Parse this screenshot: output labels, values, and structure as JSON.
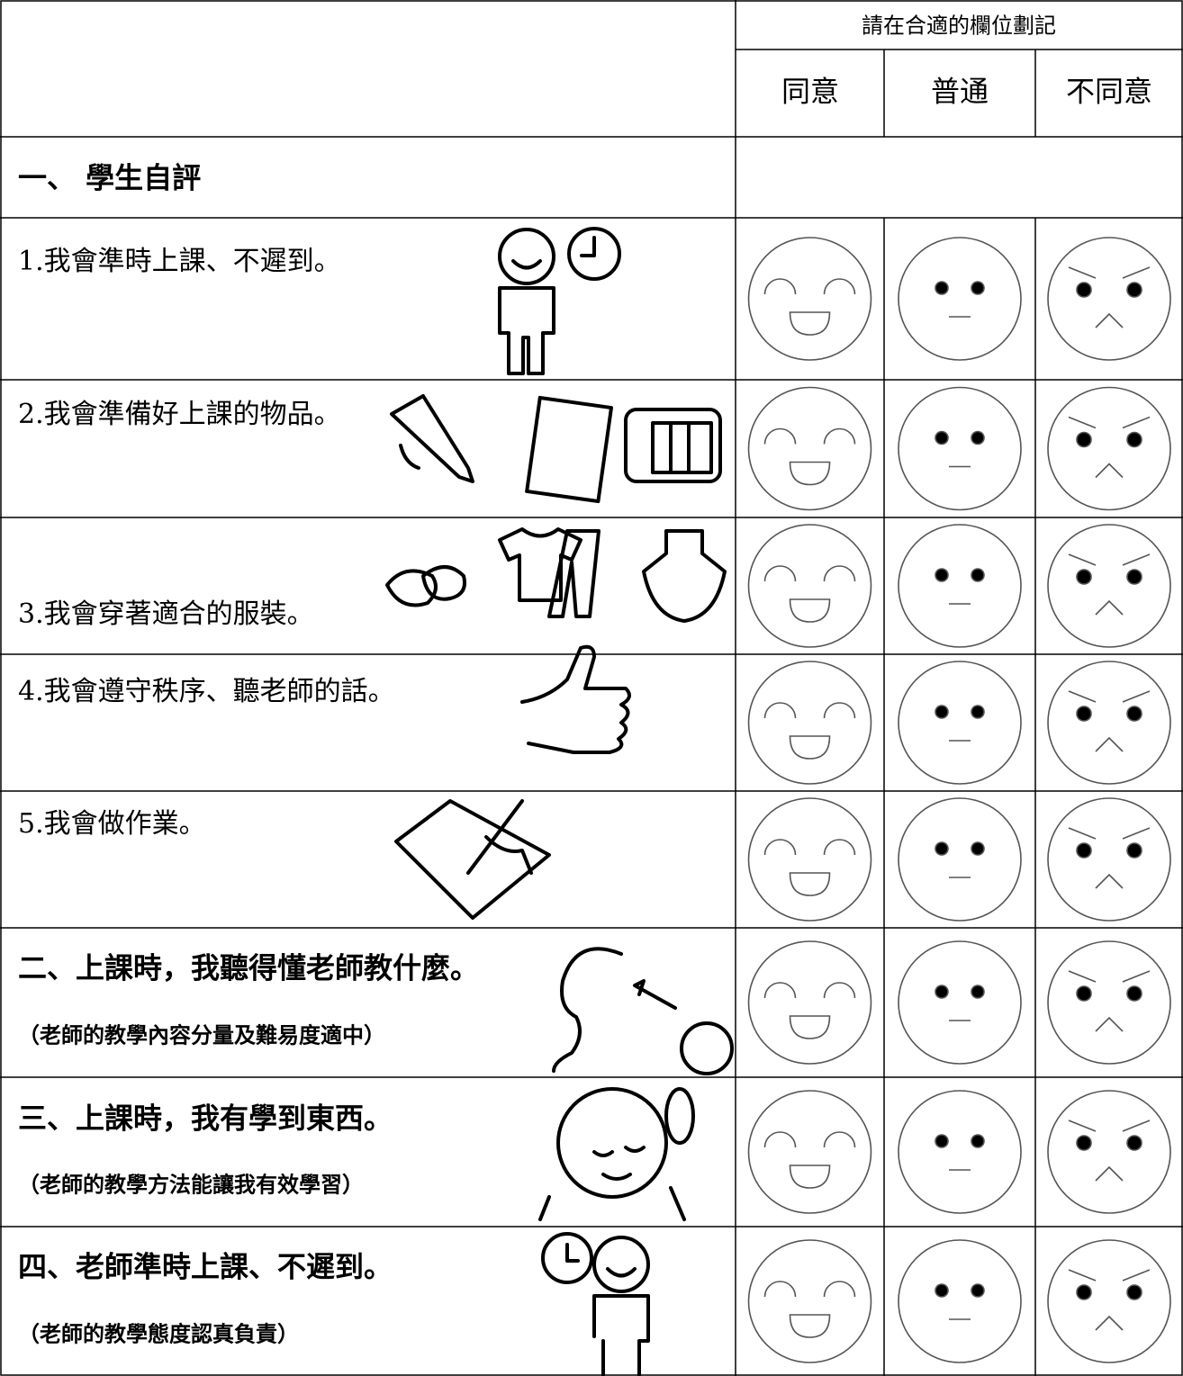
{
  "header": {
    "instruction": "請在合適的欄位劃記",
    "columns": [
      "同意",
      "普通",
      "不同意"
    ]
  },
  "section": "一、 學生自評",
  "items": [
    {
      "text": "1.我會準時上課、不遲到。"
    },
    {
      "text": "2.我會準備好上課的物品。"
    },
    {
      "text": "3.我會穿著適合的服裝。"
    },
    {
      "text": "4.我會遵守秩序、聽老師的話。"
    },
    {
      "text": "5.我會做作業。"
    },
    {
      "text": "二、上課時，我聽得懂老師教什麼。",
      "note": "（老師的教學內容分量及難易度適中）"
    },
    {
      "text": "三、上課時，我有學到東西。",
      "note": "（老師的教學方法能讓我有效學習）"
    },
    {
      "text": "四、老師準時上課、不遲到。",
      "note": "（老師的教學態度認真負責）"
    }
  ]
}
